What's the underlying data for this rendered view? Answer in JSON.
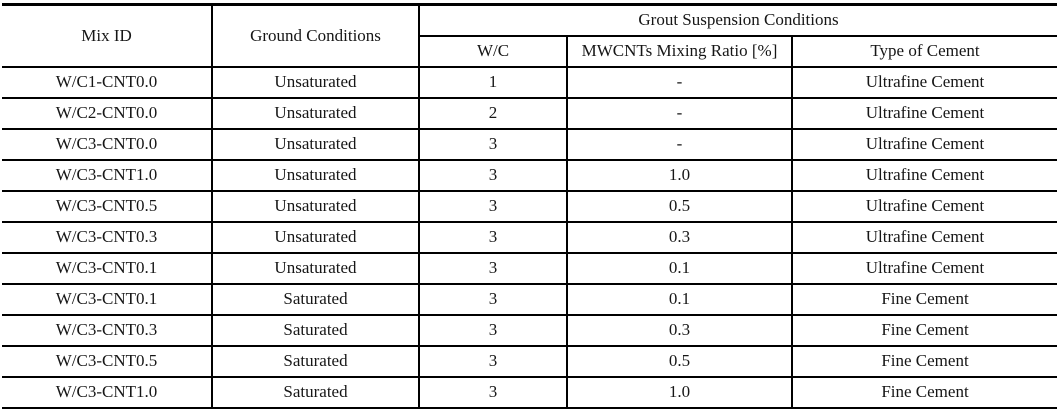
{
  "table": {
    "header": {
      "mix_id": "Mix ID",
      "ground_conditions": "Ground Conditions",
      "grout_group": "Grout Suspension Conditions",
      "wc": "W/C",
      "mwcnts_ratio": "MWCNTs Mixing Ratio [%]",
      "cement_type": "Type of Cement"
    },
    "rows": [
      [
        "W/C1-CNT0.0",
        "Unsaturated",
        "1",
        "-",
        "Ultrafine Cement"
      ],
      [
        "W/C2-CNT0.0",
        "Unsaturated",
        "2",
        "-",
        "Ultrafine Cement"
      ],
      [
        "W/C3-CNT0.0",
        "Unsaturated",
        "3",
        "-",
        "Ultrafine Cement"
      ],
      [
        "W/C3-CNT1.0",
        "Unsaturated",
        "3",
        "1.0",
        "Ultrafine Cement"
      ],
      [
        "W/C3-CNT0.5",
        "Unsaturated",
        "3",
        "0.5",
        "Ultrafine Cement"
      ],
      [
        "W/C3-CNT0.3",
        "Unsaturated",
        "3",
        "0.3",
        "Ultrafine Cement"
      ],
      [
        "W/C3-CNT0.1",
        "Unsaturated",
        "3",
        "0.1",
        "Ultrafine Cement"
      ],
      [
        "W/C3-CNT0.1",
        "Saturated",
        "3",
        "0.1",
        "Fine Cement"
      ],
      [
        "W/C3-CNT0.3",
        "Saturated",
        "3",
        "0.3",
        "Fine Cement"
      ],
      [
        "W/C3-CNT0.5",
        "Saturated",
        "3",
        "0.5",
        "Fine Cement"
      ],
      [
        "W/C3-CNT1.0",
        "Saturated",
        "3",
        "1.0",
        "Fine Cement"
      ]
    ],
    "colors": {
      "border": "#000000",
      "text": "#161616",
      "background": "#ffffff"
    }
  }
}
